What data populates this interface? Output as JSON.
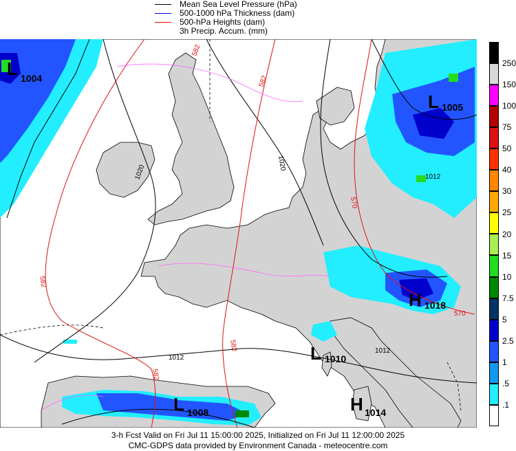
{
  "legend": {
    "items": [
      {
        "label": "Mean Sea Level Pressure (hPa)",
        "color": "#000000"
      },
      {
        "label": "500-1000 hPa Thickness (dam)",
        "color": "#0000ff"
      },
      {
        "label": "500-hPa Heights (dam)",
        "color": "#ff0000"
      },
      {
        "label": "3h Precip. Accum. (mm)",
        "color": ""
      }
    ]
  },
  "scale": {
    "labels": [
      "250",
      "150",
      "100",
      "75",
      "50",
      "40",
      "30",
      "25",
      "20",
      "15",
      "10",
      "7.5",
      "5",
      "2.5",
      "1",
      ".5",
      ".1"
    ],
    "colors": [
      "#000000",
      "#d9d9d9",
      "#ff00ff",
      "#b30000",
      "#e01010",
      "#ff3300",
      "#ff8800",
      "#ffaa00",
      "#ffff00",
      "#aaee55",
      "#22dd22",
      "#008800",
      "#003366",
      "#0000cc",
      "#2255ff",
      "#1199ee",
      "#22eeff",
      "#ffffff"
    ]
  },
  "centers": [
    {
      "type": "L",
      "value": "1004"
    },
    {
      "type": "L",
      "value": "1005"
    },
    {
      "type": "H",
      "value": "1018"
    },
    {
      "type": "L",
      "value": "1010"
    },
    {
      "type": "L",
      "value": "1008"
    },
    {
      "type": "H",
      "value": "1014"
    }
  ],
  "contour_labels": {
    "heights": [
      "582",
      "582",
      "570",
      "582",
      "582",
      "570",
      "582",
      "570"
    ],
    "pressure": [
      "1020",
      "1020",
      "1012",
      "1012",
      "1012"
    ]
  },
  "footer": {
    "line1": "3-h Fcst Valid on Fri Jul 11 15:00:00 2025, Initialized on Fri Jul 11 12:00:00 2025",
    "line2": "CMC-GDPS data provided by Environment Canada - meteocentre.com"
  }
}
